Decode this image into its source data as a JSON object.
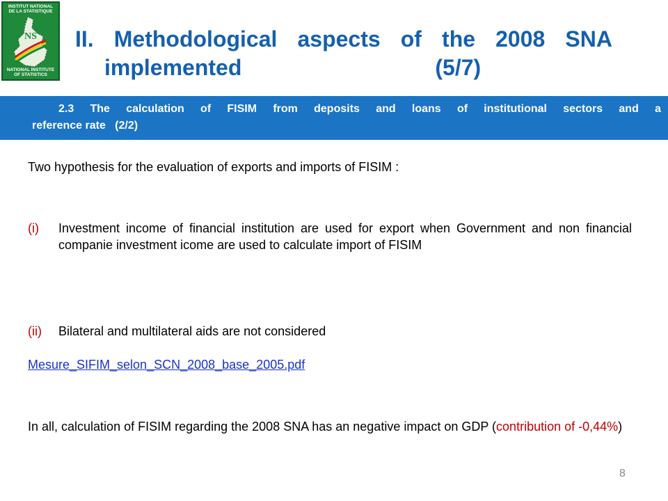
{
  "logo": {
    "top_text_1": "INSTITUT NATIONAL",
    "top_text_2": "DE LA STATISTIQUE",
    "monogram": "NS",
    "bottom_text_1": "NATIONAL INSTITUTE",
    "bottom_text_2": "OF STATISTICS"
  },
  "title": {
    "words_line1": [
      "II.",
      "Methodological",
      "aspects",
      "of",
      "the",
      "2008",
      "SNA"
    ],
    "line2_left": "implemented",
    "line2_right": "(5/7)"
  },
  "banner": {
    "line1": "2.3 The calculation of FISIM from deposits and loans of institutional sectors and a",
    "line2": "reference rate   (2/2)"
  },
  "body": {
    "intro": "Two hypothesis for the evaluation of exports and imports of FISIM :",
    "item1_num": "(i)",
    "item1_text": "Investment income of financial institution are used for export when Government and non financial companie investment icome are used to calculate import of FISIM",
    "item2_num": "(ii)",
    "item2_text": "Bilateral and multilateral aids are not considered",
    "link_text": "Mesure_SIFIM_selon_SCN_2008_base_2005.pdf",
    "conclusion_main": "In all, calculation of FISIM regarding the 2008 SNA has an negative impact on GDP (",
    "conclusion_red": "contribution of -0,44%",
    "conclusion_end": ")"
  },
  "page_number": "8",
  "colors": {
    "title": "#1560ad",
    "banner": "#1b74c4",
    "accent_red": "#c00000",
    "link": "#1a33c8"
  }
}
